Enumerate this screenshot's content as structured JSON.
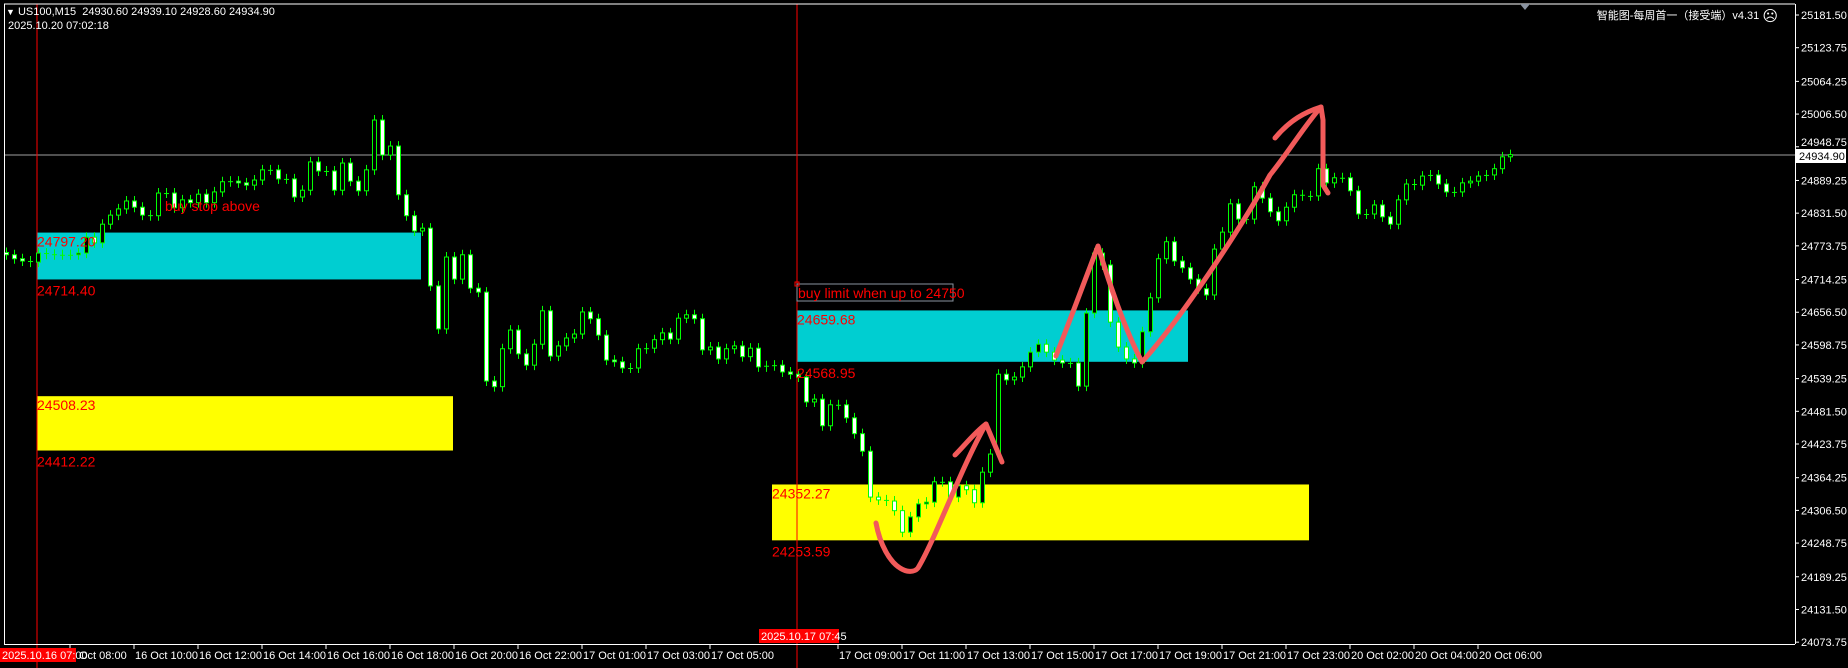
{
  "header": {
    "menu_icon": "triangle-down-icon",
    "symbol": "US100,M15",
    "ohlc": "24930.60 24939.10 24928.60 24934.90",
    "server_time": "2025.10.20 07:02:18",
    "indicator_name": "智能图-每周首一（接受端）v4.31",
    "status_icon": "sad-face-icon"
  },
  "annotations": {
    "buy_stop_text": "buy stop above",
    "buy_limit_text": "buy limit when up to 24750",
    "zones": [
      {
        "color": "#00CED1",
        "top": 24797.2,
        "bottom": 24714.4,
        "top_label": "24797.20",
        "bottom_label": "24714.40"
      },
      {
        "color": "#FFFF00",
        "top": 24508.23,
        "bottom": 24412.22,
        "top_label": "24508.23",
        "bottom_label": "24412.22"
      },
      {
        "color": "#00CED1",
        "top": 24659.68,
        "bottom": 24568.95,
        "top_label": "24659.68",
        "bottom_label": "24568.95"
      },
      {
        "color": "#FFFF00",
        "top": 24352.27,
        "bottom": 24253.59,
        "top_label": "24352.27",
        "bottom_label": "24253.59"
      }
    ],
    "vertical_line_labels": [
      "2025.10.16 07:00",
      "2025.10.17 07:45"
    ]
  },
  "colors": {
    "background": "#000000",
    "candle_outline": "#00FF00",
    "bull_body": "#000000",
    "bear_body": "#FFFFFF",
    "vline": "#FF0000",
    "drawing": "#F25A5A",
    "bid_line": "#A0A0A0"
  },
  "chart_data": {
    "type": "candlestick",
    "title": "US100,M15",
    "current_price": "24934.90",
    "ylim": [
      24073.75,
      25181.5
    ],
    "grid": false,
    "price_ticks": [
      "25181.50",
      "25123.75",
      "25064.25",
      "25006.50",
      "24948.75",
      "24889.25",
      "24831.50",
      "24773.75",
      "24714.25",
      "24656.50",
      "24598.75",
      "24539.25",
      "24481.50",
      "24423.75",
      "24364.25",
      "24306.50",
      "24248.75",
      "24189.25",
      "24131.50",
      "24073.75"
    ],
    "time_ticks": [
      "Oct 08:00",
      "16 Oct 10:00",
      "16 Oct 12:00",
      "16 Oct 14:00",
      "16 Oct 16:00",
      "16 Oct 18:00",
      "16 Oct 20:00",
      "16 Oct 22:00",
      "17 Oct 01:00",
      "17 Oct 03:00",
      "17 Oct 05:00",
      "17 Oct 09:00",
      "17 Oct 11:00",
      "17 Oct 13:00",
      "17 Oct 15:00",
      "17 Oct 17:00",
      "17 Oct 19:00",
      "17 Oct 21:00",
      "17 Oct 23:00",
      "20 Oct 02:00",
      "20 Oct 04:00",
      "20 Oct 06:00"
    ],
    "close": [
      24758,
      24751,
      24747,
      24745,
      24761,
      24759,
      24758,
      24758,
      24758,
      24761,
      24789,
      24779,
      24812,
      24828,
      24839,
      24853,
      24842,
      24828,
      24827,
      24867,
      24867,
      24841,
      24855,
      24850,
      24865,
      24850,
      24869,
      24887,
      24888,
      24885,
      24881,
      24890,
      24908,
      24908,
      24892,
      24892,
      24860,
      24872,
      24922,
      24906,
      24906,
      24872,
      24920,
      24888,
      24871,
      24908,
      24996,
      24934,
      24950,
      24864,
      24827,
      24800,
      24805,
      24703,
      24627,
      24754,
      24715,
      24758,
      24699,
      24692,
      24535,
      24525,
      24592,
      24625,
      24583,
      24563,
      24600,
      24659,
      24579,
      24597,
      24611,
      24618,
      24657,
      24645,
      24616,
      24572,
      24569,
      24558,
      24558,
      24592,
      24593,
      24608,
      24620,
      24609,
      24646,
      24652,
      24645,
      24590,
      24595,
      24574,
      24592,
      24597,
      24578,
      24593,
      24560,
      24562,
      24563,
      24551,
      24547,
      24542,
      24498,
      24503,
      24456,
      24493,
      24493,
      24470,
      24442,
      24411,
      24330,
      24325,
      24323,
      24306,
      24268,
      24295,
      24318,
      24321,
      24357,
      24357,
      24330,
      24350,
      24343,
      24320,
      24374,
      24406,
      24547,
      24537,
      24542,
      24560,
      24586,
      24600,
      24586,
      24572,
      24567,
      24567,
      24526,
      24655,
      24761,
      24740,
      24639,
      24595,
      24574,
      24567,
      24622,
      24682,
      24751,
      24781,
      24747,
      24735,
      24715,
      24698,
      24687,
      24768,
      24798,
      24848,
      24821,
      24821,
      24878,
      24858,
      24834,
      24818,
      24842,
      24864,
      24862,
      24862,
      24910,
      24885,
      24894,
      24894,
      24871,
      24830,
      24830,
      24846,
      24825,
      24812,
      24855,
      24883,
      24881,
      24897,
      24899,
      24883,
      24869,
      24869,
      24885,
      24888,
      24897,
      24899,
      24910,
      24931,
      24934.9
    ]
  }
}
